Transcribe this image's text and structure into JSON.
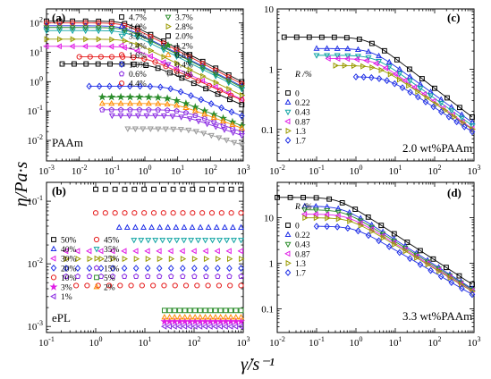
{
  "axis_labels": {
    "y": "η/Pa·s",
    "x": "γ̇/s⁻¹"
  },
  "chart_data": [
    {
      "id": "a",
      "panel_label": "(a)",
      "type": "scatter",
      "annotation": "PAAm",
      "xscale": "log",
      "yscale": "log",
      "xlim": [
        0.001,
        1000
      ],
      "ylim": [
        0.002,
        300
      ],
      "xticks": [
        {
          "v": 0.001,
          "m": -3
        },
        {
          "v": 0.01,
          "m": -2
        },
        {
          "v": 0.1,
          "m": -1
        },
        {
          "v": 1,
          "m": 0
        },
        {
          "v": 10,
          "m": 1
        },
        {
          "v": 100,
          "m": 2
        },
        {
          "v": 1000,
          "m": 3
        }
      ],
      "yticks": [
        {
          "v": 0.01,
          "m": -2
        },
        {
          "v": 0.1,
          "m": -1
        },
        {
          "v": 1,
          "m": 0
        },
        {
          "v": 10,
          "m": 1
        },
        {
          "v": 100,
          "m": 2
        }
      ],
      "legend_position": "top-right",
      "legend_cols": 2,
      "series": [
        {
          "name": "4.7%",
          "marker": "square",
          "color": "#000000",
          "fit": true,
          "eta0": 115,
          "gc": 0.25,
          "n": 0.42,
          "x0": 0.001,
          "x1": 900
        },
        {
          "name": "4.0%",
          "marker": "triangle-up",
          "color": "#1f2fe6",
          "fit": true,
          "eta0": 80,
          "gc": 0.22,
          "n": 0.43,
          "x0": 0.001,
          "x1": 900
        },
        {
          "name": "3.2%",
          "marker": "triangle-down",
          "color": "#0fa3a3",
          "fit": true,
          "eta0": 55,
          "gc": 0.25,
          "n": 0.44,
          "x0": 0.001,
          "x1": 900
        },
        {
          "name": "2.4%",
          "marker": "triangle-left",
          "color": "#e01ee6",
          "fit": true,
          "eta0": 16,
          "gc": 0.35,
          "n": 0.47,
          "x0": 0.001,
          "x1": 900
        },
        {
          "name": "1.6%",
          "marker": "circle",
          "color": "#e61e1e",
          "fit": true,
          "eta0": 7,
          "gc": 1.0,
          "n": 0.5,
          "x0": 0.01,
          "x1": 900
        },
        {
          "name": "1.0%",
          "marker": "diamond",
          "color": "#1f2fe6",
          "fit": true,
          "eta0": 0.7,
          "gc": 5,
          "n": 0.55,
          "x0": 0.02,
          "x1": 900
        },
        {
          "name": "0.6%",
          "marker": "pentagon",
          "color": "#8a2be2",
          "fit": true,
          "eta0": 0.11,
          "gc": 12,
          "n": 0.6,
          "x0": 0.05,
          "x1": 900
        },
        {
          "name": "4.4%",
          "marker": "circle",
          "color": "#e61e1e",
          "fit": true,
          "eta0": 100,
          "gc": 0.24,
          "n": 0.42,
          "x0": 0.001,
          "x1": 900
        },
        {
          "name": "3.7%",
          "marker": "triangle-down",
          "color": "#2a8c2a",
          "fit": true,
          "eta0": 70,
          "gc": 0.24,
          "n": 0.43,
          "x0": 0.001,
          "x1": 900
        },
        {
          "name": "2.8%",
          "marker": "triangle-right",
          "color": "#9a9a00",
          "fit": true,
          "eta0": 28,
          "gc": 0.3,
          "n": 0.45,
          "x0": 0.001,
          "x1": 900
        },
        {
          "name": "2.0%",
          "marker": "square",
          "color": "#000000",
          "fit": true,
          "eta0": 4,
          "gc": 1.5,
          "n": 0.5,
          "x0": 0.003,
          "x1": 900
        },
        {
          "name": "1.2%",
          "marker": "star",
          "color": "#2a8c2a",
          "fit": true,
          "eta0": 0.3,
          "gc": 6,
          "n": 0.55,
          "x0": 0.05,
          "x1": 900
        },
        {
          "name": "0.8%",
          "marker": "triangle-up",
          "color": "#ff8c00",
          "fit": true,
          "eta0": 0.18,
          "gc": 9,
          "n": 0.58,
          "x0": 0.05,
          "x1": 900
        },
        {
          "name": "0.4%",
          "marker": "triangle-down",
          "color": "#8a2be2",
          "fit": true,
          "eta0": 0.07,
          "gc": 15,
          "n": 0.62,
          "x0": 0.1,
          "x1": 900
        },
        {
          "name": "0.3%",
          "marker": "triangle-down",
          "color": "#999999",
          "fit": true,
          "eta0": 0.025,
          "gc": 25,
          "n": 0.65,
          "x0": 0.3,
          "x1": 900
        }
      ]
    },
    {
      "id": "b",
      "panel_label": "(b)",
      "type": "scatter",
      "annotation": "ePL",
      "xscale": "log",
      "yscale": "log",
      "xlim": [
        0.1,
        1000
      ],
      "ylim": [
        0.0008,
        0.2
      ],
      "xticks": [
        {
          "v": 0.1,
          "m": -1
        },
        {
          "v": 1,
          "m": 0
        },
        {
          "v": 10,
          "m": 1
        },
        {
          "v": 100,
          "m": 2
        },
        {
          "v": 1000,
          "m": 3
        }
      ],
      "yticks": [
        {
          "v": 0.001,
          "m": -3
        },
        {
          "v": 0.01,
          "m": -2
        },
        {
          "v": 0.1,
          "m": -1
        }
      ],
      "legend_position": "bottom-left",
      "legend_cols": 2,
      "series": [
        {
          "name": "50%",
          "marker": "square",
          "color": "#000000",
          "eta0": 0.155,
          "x0": 1,
          "x1": 900
        },
        {
          "name": "40%",
          "marker": "triangle-up",
          "color": "#1f2fe6",
          "eta0": 0.038,
          "x0": 3,
          "x1": 900
        },
        {
          "name": "30%",
          "marker": "triangle-left",
          "color": "#e01ee6",
          "eta0": 0.016,
          "x0": 0.25,
          "x1": 900
        },
        {
          "name": "20%",
          "marker": "diamond",
          "color": "#1f2fe6",
          "eta0": 0.0085,
          "x0": 0.25,
          "x1": 900
        },
        {
          "name": "10%",
          "marker": "circle",
          "color": "#e61e1e",
          "eta0": 0.0045,
          "x0": 0.4,
          "x1": 900
        },
        {
          "name": "3%",
          "marker": "star",
          "color": "#e01ee6",
          "eta0": 0.0012,
          "x0": 25,
          "x1": 900
        },
        {
          "name": "1%",
          "marker": "triangle-left",
          "color": "#8a2be2",
          "eta0": 0.001,
          "x0": 25,
          "x1": 900
        },
        {
          "name": "45%",
          "marker": "circle",
          "color": "#e61e1e",
          "eta0": 0.065,
          "x0": 1,
          "x1": 900
        },
        {
          "name": "35%",
          "marker": "triangle-down",
          "color": "#0fa3a3",
          "eta0": 0.024,
          "x0": 6,
          "x1": 900
        },
        {
          "name": "25%",
          "marker": "triangle-right",
          "color": "#9a9a00",
          "eta0": 0.012,
          "x0": 0.25,
          "x1": 900
        },
        {
          "name": "15%",
          "marker": "pentagon",
          "color": "#8a2be2",
          "eta0": 0.0063,
          "x0": 0.25,
          "x1": 900
        },
        {
          "name": "5%",
          "marker": "square",
          "color": "#2a8c2a",
          "eta0": 0.0018,
          "x0": 25,
          "x1": 900
        },
        {
          "name": "2%",
          "marker": "triangle-up",
          "color": "#ff8c00",
          "eta0": 0.0014,
          "x0": 25,
          "x1": 900
        }
      ]
    },
    {
      "id": "c",
      "panel_label": "(c)",
      "type": "scatter",
      "annotation": "2.0 wt%PAAm",
      "legend_title": "R /%",
      "xscale": "log",
      "yscale": "log",
      "xlim": [
        0.01,
        1000
      ],
      "ylim": [
        0.03,
        10
      ],
      "xticks": [
        {
          "v": 0.01,
          "m": -2
        },
        {
          "v": 0.1,
          "m": -1
        },
        {
          "v": 1,
          "m": 0
        },
        {
          "v": 10,
          "m": 1
        },
        {
          "v": 100,
          "m": 2
        },
        {
          "v": 1000,
          "m": 3
        }
      ],
      "yticks": [
        {
          "v": 0.1,
          "t": "0.1"
        },
        {
          "v": 1,
          "t": "1"
        },
        {
          "v": 10,
          "t": "10"
        }
      ],
      "legend_position": "middle-left",
      "legend_cols": 1,
      "series": [
        {
          "name": "0",
          "marker": "square",
          "color": "#000000",
          "fit": true,
          "eta0": 3.4,
          "gc": 2,
          "n": 0.5,
          "x0": 0.015,
          "x1": 900
        },
        {
          "name": "0.22",
          "marker": "triangle-up",
          "color": "#1f2fe6",
          "fit": true,
          "eta0": 2.2,
          "gc": 2.5,
          "n": 0.52,
          "x0": 0.1,
          "x1": 900
        },
        {
          "name": "0.43",
          "marker": "triangle-down",
          "color": "#0fa3a3",
          "fit": true,
          "eta0": 1.7,
          "gc": 3,
          "n": 0.53,
          "x0": 0.1,
          "x1": 900
        },
        {
          "name": "0.87",
          "marker": "triangle-left",
          "color": "#e01ee6",
          "fit": true,
          "eta0": 1.5,
          "gc": 3,
          "n": 0.53,
          "x0": 0.2,
          "x1": 900
        },
        {
          "name": "1.3",
          "marker": "triangle-right",
          "color": "#9a9a00",
          "fit": true,
          "eta0": 1.15,
          "gc": 4,
          "n": 0.55,
          "x0": 0.3,
          "x1": 900
        },
        {
          "name": "1.7",
          "marker": "diamond",
          "color": "#1f2fe6",
          "fit": true,
          "eta0": 0.75,
          "gc": 6,
          "n": 0.58,
          "x0": 1,
          "x1": 900
        }
      ]
    },
    {
      "id": "d",
      "panel_label": "(d)",
      "type": "scatter",
      "annotation": "3.3 wt%PAAm",
      "legend_title": "R /%",
      "xscale": "log",
      "yscale": "log",
      "xlim": [
        0.01,
        1000
      ],
      "ylim": [
        0.03,
        60
      ],
      "xticks": [
        {
          "v": 0.01,
          "m": -2
        },
        {
          "v": 0.1,
          "m": -1
        },
        {
          "v": 1,
          "m": 0
        },
        {
          "v": 10,
          "m": 1
        },
        {
          "v": 100,
          "m": 2
        },
        {
          "v": 1000,
          "m": 3
        }
      ],
      "yticks": [
        {
          "v": 0.1,
          "t": "0.1"
        },
        {
          "v": 1,
          "t": "1"
        },
        {
          "v": 10,
          "t": "10"
        }
      ],
      "legend_position": "middle-left",
      "legend_cols": 1,
      "series": [
        {
          "name": "0",
          "marker": "square",
          "color": "#000000",
          "fit": true,
          "eta0": 28,
          "gc": 0.35,
          "n": 0.44,
          "x0": 0.01,
          "x1": 900
        },
        {
          "name": "0.22",
          "marker": "triangle-up",
          "color": "#1f2fe6",
          "fit": true,
          "eta0": 18,
          "gc": 0.45,
          "n": 0.45,
          "x0": 0.05,
          "x1": 900
        },
        {
          "name": "0.43",
          "marker": "triangle-down",
          "color": "#2a8c2a",
          "fit": true,
          "eta0": 15,
          "gc": 0.5,
          "n": 0.46,
          "x0": 0.05,
          "x1": 900
        },
        {
          "name": "0.87",
          "marker": "triangle-left",
          "color": "#e01ee6",
          "fit": true,
          "eta0": 12,
          "gc": 0.6,
          "n": 0.47,
          "x0": 0.05,
          "x1": 900
        },
        {
          "name": "1.3",
          "marker": "triangle-right",
          "color": "#9a9a00",
          "fit": true,
          "eta0": 10,
          "gc": 0.7,
          "n": 0.48,
          "x0": 0.05,
          "x1": 900
        },
        {
          "name": "1.7",
          "marker": "diamond",
          "color": "#1f2fe6",
          "fit": true,
          "eta0": 6.5,
          "gc": 0.9,
          "n": 0.5,
          "x0": 0.1,
          "x1": 900
        }
      ]
    }
  ]
}
